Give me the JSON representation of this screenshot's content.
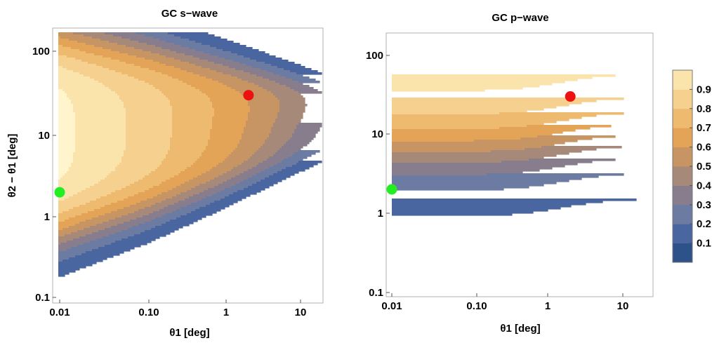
{
  "colors": {
    "levels": [
      "#2d5189",
      "#4a66a1",
      "#6c7ba2",
      "#877d8c",
      "#a78979",
      "#c69563",
      "#e3a457",
      "#eeba6f",
      "#f6d08e",
      "#fbe3ac",
      "#fff4cb"
    ],
    "red_marker": "#ee1111",
    "green_marker": "#22ee22"
  },
  "chart_data": [
    {
      "type": "heatmap",
      "subtype": "filled-contour",
      "title": "GC s−wave",
      "xlabel": "θ1 [deg]",
      "ylabel": "θ2 − θ1 [deg]",
      "x_scale": "log",
      "y_scale": "log",
      "xlim": [
        0.01,
        20
      ],
      "ylim": [
        0.1,
        170
      ],
      "x_ticks": [
        {
          "value": 0.01,
          "label": "0.01"
        },
        {
          "value": 0.1,
          "label": "0.10"
        },
        {
          "value": 1,
          "label": "1"
        },
        {
          "value": 10,
          "label": "10"
        }
      ],
      "y_ticks": [
        {
          "value": 0.1,
          "label": "0.1"
        },
        {
          "value": 1,
          "label": "1"
        },
        {
          "value": 10,
          "label": "10"
        },
        {
          "value": 100,
          "label": "100"
        }
      ],
      "contour_levels": [
        0.1,
        0.2,
        0.3,
        0.4,
        0.5,
        0.6,
        0.7,
        0.8,
        0.9
      ],
      "points": [
        {
          "name": "red",
          "x": 2,
          "y": 30
        },
        {
          "name": "green",
          "x": 0.01,
          "y": 2
        }
      ]
    },
    {
      "type": "heatmap",
      "subtype": "filled-contour",
      "title": "GC p−wave",
      "xlabel": "θ1 [deg]",
      "ylabel": "",
      "x_scale": "log",
      "y_scale": "log",
      "xlim": [
        0.01,
        20
      ],
      "ylim": [
        0.1,
        170
      ],
      "x_ticks": [
        {
          "value": 0.01,
          "label": "0.01"
        },
        {
          "value": 0.1,
          "label": "0.10"
        },
        {
          "value": 1,
          "label": "1"
        },
        {
          "value": 10,
          "label": "10"
        }
      ],
      "y_ticks": [
        {
          "value": 0.1,
          "label": "0.1"
        },
        {
          "value": 1,
          "label": "1"
        },
        {
          "value": 10,
          "label": "10"
        },
        {
          "value": 100,
          "label": "100"
        }
      ],
      "contour_levels": [
        0.1,
        0.2,
        0.3,
        0.4,
        0.5,
        0.6,
        0.7,
        0.8,
        0.9
      ],
      "points": [
        {
          "name": "red",
          "x": 2,
          "y": 30
        },
        {
          "name": "green",
          "x": 0.01,
          "y": 2
        }
      ]
    }
  ],
  "colorbar": {
    "labels": [
      "0.9",
      "0.8",
      "0.7",
      "0.6",
      "0.5",
      "0.4",
      "0.3",
      "0.2",
      "0.1"
    ],
    "range": [
      0,
      1
    ]
  }
}
